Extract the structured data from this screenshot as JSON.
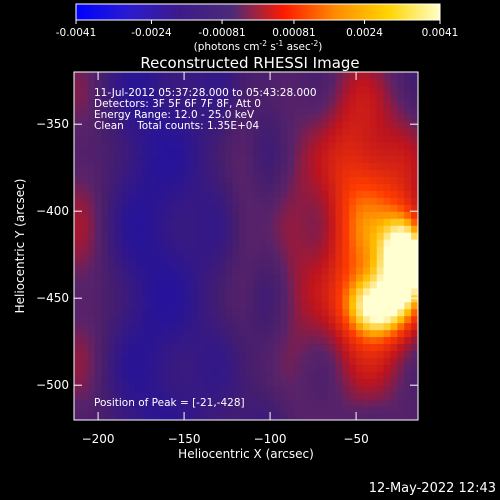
{
  "colorbar": {
    "ticks": [
      "-0.0041",
      "-0.0024",
      "-0.00081",
      "0.00081",
      "0.0024",
      "0.0041"
    ],
    "label_main": "(photons cm",
    "label_exp1": "-2",
    "label_mid1": " s",
    "label_exp2": "-1",
    "label_mid2": " asec",
    "label_exp3": "-2",
    "label_end": ")",
    "colors": [
      "#0000ff",
      "#2a1bd0",
      "#3d1a8a",
      "#4b2a78",
      "#ff1a00",
      "#ff8c00",
      "#ffd400",
      "#ffffc8"
    ]
  },
  "chart_data": {
    "type": "heatmap",
    "title": "Reconstructed RHESSI Image",
    "xlabel": "Heliocentric X (arcsec)",
    "ylabel": "Heliocentric Y (arcsec)",
    "xlim": [
      -214,
      -14
    ],
    "ylim": [
      -520,
      -320
    ],
    "x_ticks": [
      -200,
      -150,
      -100,
      -50
    ],
    "y_ticks": [
      -350,
      -400,
      -450,
      -500
    ],
    "x_tick_labels": [
      "−200",
      "−150",
      "−100",
      "−50"
    ],
    "y_tick_labels": [
      "−350",
      "−400",
      "−450",
      "−500"
    ],
    "color_range": [
      -0.0041,
      0.0041
    ],
    "peak": [
      -21,
      -428
    ],
    "info_lines": [
      "11-Jul-2012 05:37:28.000 to 05:43:28.000",
      "Detectors: 3F 5F 6F 7F 8F, Att 0",
      "Energy Range: 12.0 - 25.0 keV",
      "Clean    Total counts: 1.35E+04"
    ],
    "peak_text": "Position of Peak = [-21,-428]"
  },
  "footer": {
    "timestamp": "12-May-2022 12:43"
  }
}
